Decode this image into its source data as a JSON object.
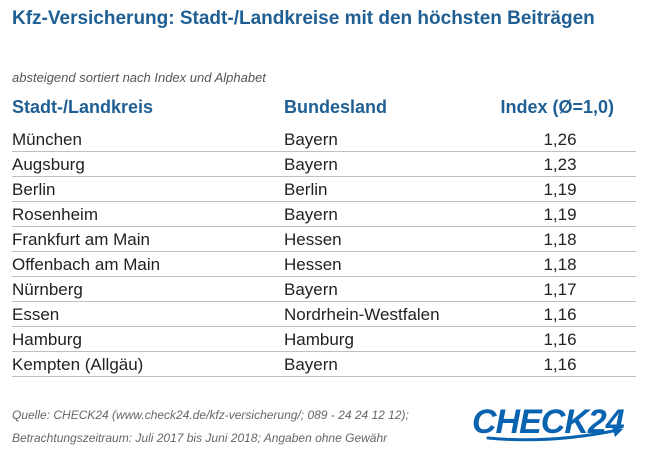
{
  "title": "Kfz-Versicherung: Stadt-/Landkreise mit den höchsten Beiträgen",
  "subtitle": "absteigend sortiert nach Index und Alphabet",
  "table": {
    "headers": {
      "city": "Stadt-/Landkreis",
      "state": "Bundesland",
      "index": "Index (Ø=1,0)"
    },
    "rows": [
      {
        "city": "München",
        "state": "Bayern",
        "index": "1,26"
      },
      {
        "city": "Augsburg",
        "state": "Bayern",
        "index": "1,23"
      },
      {
        "city": "Berlin",
        "state": "Berlin",
        "index": "1,19"
      },
      {
        "city": "Rosenheim",
        "state": "Bayern",
        "index": "1,19"
      },
      {
        "city": "Frankfurt am Main",
        "state": "Hessen",
        "index": "1,18"
      },
      {
        "city": "Offenbach am Main",
        "state": "Hessen",
        "index": "1,18"
      },
      {
        "city": "Nürnberg",
        "state": "Bayern",
        "index": "1,17"
      },
      {
        "city": "Essen",
        "state": "Nordrhein-Westfalen",
        "index": "1,16"
      },
      {
        "city": "Hamburg",
        "state": "Hamburg",
        "index": "1,16"
      },
      {
        "city": "Kempten (Allgäu)",
        "state": "Bayern",
        "index": "1,16"
      }
    ]
  },
  "footer": {
    "source": "Quelle: CHECK24 (www.check24.de/kfz-versicherung/; 089 - 24 24 12 12);",
    "period": "Betrachtungszeitraum: Juli 2017 bis Juni 2018; Angaben ohne Gewähr"
  },
  "logo": {
    "text": "CHECK24",
    "color": "#0a63b0"
  },
  "colors": {
    "heading": "#1f5f93",
    "row_divider": "#bfbfbf"
  }
}
